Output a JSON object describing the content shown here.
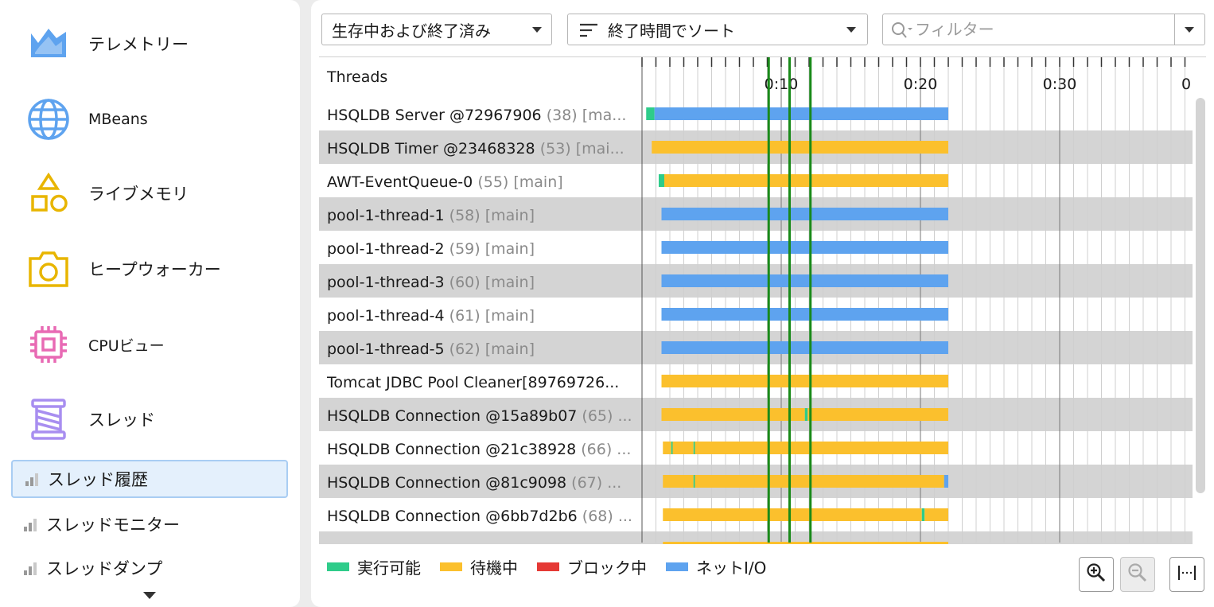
{
  "sidebar": {
    "items": [
      {
        "label": "テレメトリー",
        "icon": "telemetry-icon",
        "color": "#5ea3ef"
      },
      {
        "label": "MBeans",
        "icon": "globe-icon",
        "color": "#5ea3ef"
      },
      {
        "label": "ライブメモリ",
        "icon": "shapes-icon",
        "color": "#e8b500"
      },
      {
        "label": "ヒープウォーカー",
        "icon": "camera-icon",
        "color": "#e8b500"
      },
      {
        "label": "CPUビュー",
        "icon": "chip-icon",
        "color": "#e86ab4"
      },
      {
        "label": "スレッド",
        "icon": "spool-icon",
        "color": "#a88ef0"
      }
    ],
    "sub_items": [
      {
        "label": "スレッド履歴",
        "icon": "bar-chart-icon",
        "selected": true
      },
      {
        "label": "スレッドモニター",
        "icon": "bar-chart-icon",
        "selected": false
      },
      {
        "label": "スレッドダンプ",
        "icon": "bar-chart-icon",
        "selected": false
      }
    ]
  },
  "toolbar": {
    "state_filter": "生存中および終了済み",
    "sort": "終了時間でソート",
    "filter_placeholder": "フィルター",
    "filter_value": ""
  },
  "table": {
    "header": "Threads",
    "time_ticks": [
      "0:10",
      "0:20",
      "0:30",
      "0"
    ],
    "rows": [
      {
        "name": "HSQLDB Server @72967906",
        "meta": "(38) [ma..."
      },
      {
        "name": "HSQLDB Timer @23468328",
        "meta": "(53) [mai..."
      },
      {
        "name": "AWT-EventQueue-0",
        "meta": "(55) [main]"
      },
      {
        "name": "pool-1-thread-1",
        "meta": "(58) [main]"
      },
      {
        "name": "pool-1-thread-2",
        "meta": "(59) [main]"
      },
      {
        "name": "pool-1-thread-3",
        "meta": "(60) [main]"
      },
      {
        "name": "pool-1-thread-4",
        "meta": "(61) [main]"
      },
      {
        "name": "pool-1-thread-5",
        "meta": "(62) [main]"
      },
      {
        "name": "Tomcat JDBC Pool Cleaner[89769726...",
        "meta": ""
      },
      {
        "name": "HSQLDB Connection @15a89b07",
        "meta": "(65) ..."
      },
      {
        "name": "HSQLDB Connection @21c38928",
        "meta": "(66) ..."
      },
      {
        "name": "HSQLDB Connection @81c9098",
        "meta": "(67) ..."
      },
      {
        "name": "HSQLDB Connection @6bb7d2b6",
        "meta": "(68) ..."
      }
    ]
  },
  "timeline": {
    "time_max_visible": 39,
    "bookmarks": [
      9.1,
      10.6,
      12.1
    ],
    "bookmark_color": "#1a8a1a",
    "end_time": 22,
    "threads": [
      {
        "segments": [
          {
            "start": 0.3,
            "end": 0.9,
            "state": "runnable"
          },
          {
            "start": 0.9,
            "end": 22,
            "state": "netio"
          }
        ]
      },
      {
        "segments": [
          {
            "start": 0.7,
            "end": 22,
            "state": "waiting"
          }
        ]
      },
      {
        "segments": [
          {
            "start": 1.2,
            "end": 1.6,
            "state": "runnable"
          },
          {
            "start": 1.6,
            "end": 22,
            "state": "waiting"
          }
        ]
      },
      {
        "segments": [
          {
            "start": 1.4,
            "end": 22,
            "state": "netio"
          }
        ]
      },
      {
        "segments": [
          {
            "start": 1.4,
            "end": 22,
            "state": "netio"
          }
        ]
      },
      {
        "segments": [
          {
            "start": 1.4,
            "end": 22,
            "state": "netio"
          }
        ]
      },
      {
        "segments": [
          {
            "start": 1.4,
            "end": 22,
            "state": "netio"
          }
        ]
      },
      {
        "segments": [
          {
            "start": 1.4,
            "end": 22,
            "state": "netio"
          }
        ]
      },
      {
        "segments": [
          {
            "start": 1.4,
            "end": 22,
            "state": "waiting"
          }
        ]
      },
      {
        "segments": [
          {
            "start": 1.4,
            "end": 11.7,
            "state": "waiting"
          },
          {
            "start": 11.7,
            "end": 11.9,
            "state": "runnable"
          },
          {
            "start": 11.9,
            "end": 22,
            "state": "waiting"
          }
        ]
      },
      {
        "segments": [
          {
            "start": 1.5,
            "end": 2.1,
            "state": "waiting"
          },
          {
            "start": 2.1,
            "end": 2.2,
            "state": "runnable"
          },
          {
            "start": 2.2,
            "end": 3.7,
            "state": "waiting"
          },
          {
            "start": 3.7,
            "end": 3.8,
            "state": "runnable"
          },
          {
            "start": 3.8,
            "end": 22,
            "state": "waiting"
          }
        ]
      },
      {
        "segments": [
          {
            "start": 1.5,
            "end": 3.7,
            "state": "waiting"
          },
          {
            "start": 3.7,
            "end": 3.8,
            "state": "runnable"
          },
          {
            "start": 3.8,
            "end": 21.7,
            "state": "waiting"
          },
          {
            "start": 21.7,
            "end": 22,
            "state": "netio"
          }
        ]
      },
      {
        "segments": [
          {
            "start": 1.5,
            "end": 20.1,
            "state": "waiting"
          },
          {
            "start": 20.1,
            "end": 20.3,
            "state": "runnable"
          },
          {
            "start": 20.3,
            "end": 22,
            "state": "waiting"
          }
        ]
      }
    ]
  },
  "legend": [
    {
      "label": "実行可能",
      "state": "runnable",
      "color": "#2ecc8a"
    },
    {
      "label": "待機中",
      "state": "waiting",
      "color": "#fbc02d"
    },
    {
      "label": "ブロック中",
      "state": "blocked",
      "color": "#e53935"
    },
    {
      "label": "ネットI/O",
      "state": "netio",
      "color": "#5ea3ef"
    }
  ]
}
